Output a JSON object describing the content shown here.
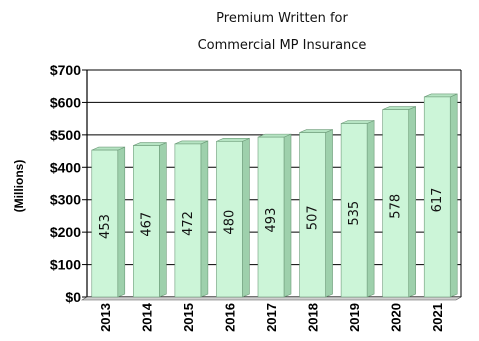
{
  "chart_data": {
    "type": "bar",
    "title_lines": [
      "Premium Written for",
      "Commercial MP Insurance"
    ],
    "ylabel": "(Millions)",
    "xlabel": "",
    "categories": [
      "2013",
      "2014",
      "2015",
      "2016",
      "2017",
      "2018",
      "2019",
      "2020",
      "2021"
    ],
    "values": [
      453,
      467,
      472,
      480,
      493,
      507,
      535,
      578,
      617
    ],
    "data_labels": [
      "453",
      "467",
      "472",
      "480",
      "493",
      "507",
      "535",
      "578",
      "617"
    ],
    "ylim": [
      0,
      700
    ],
    "yticks": [
      0,
      100,
      200,
      300,
      400,
      500,
      600,
      700
    ],
    "ytick_labels": [
      "$0",
      "$100",
      "$200",
      "$300",
      "$400",
      "$500",
      "$600",
      "$700"
    ],
    "grid": true,
    "legend": "none",
    "colors": {
      "bar_front": "#ccf5d8",
      "bar_side": "#9ed0ac",
      "bar_top": "#b6e4c3",
      "bar_stroke": "#6e9c7a",
      "grid": "#000000"
    }
  }
}
